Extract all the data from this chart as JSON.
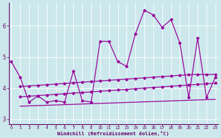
{
  "x": [
    0,
    1,
    2,
    3,
    4,
    5,
    6,
    7,
    8,
    9,
    10,
    11,
    12,
    13,
    14,
    15,
    16,
    17,
    18,
    19,
    20,
    21,
    22,
    23
  ],
  "line_main": [
    4.85,
    4.35,
    3.55,
    3.75,
    3.55,
    3.6,
    3.55,
    4.55,
    3.6,
    3.55,
    5.5,
    5.5,
    4.85,
    4.7,
    5.75,
    6.5,
    6.35,
    5.95,
    6.2,
    5.45,
    3.7,
    5.6,
    3.7,
    4.35
  ],
  "x_band": [
    1,
    2,
    3,
    4,
    5,
    6,
    7,
    8,
    9,
    10,
    11,
    12,
    13,
    14,
    15,
    16,
    17,
    18,
    19,
    20,
    21,
    22,
    23
  ],
  "line_upper": [
    4.05,
    4.07,
    4.09,
    4.11,
    4.13,
    4.15,
    4.17,
    4.19,
    4.21,
    4.23,
    4.25,
    4.27,
    4.29,
    4.31,
    4.33,
    4.35,
    4.37,
    4.39,
    4.41,
    4.43,
    4.44,
    4.44,
    4.44
  ],
  "line_mid": [
    3.72,
    3.74,
    3.76,
    3.78,
    3.8,
    3.82,
    3.84,
    3.86,
    3.88,
    3.9,
    3.92,
    3.94,
    3.96,
    3.98,
    4.0,
    4.02,
    4.04,
    4.06,
    4.08,
    4.1,
    4.12,
    4.14,
    4.16
  ],
  "line_lower": [
    3.42,
    3.43,
    3.44,
    3.45,
    3.46,
    3.47,
    3.48,
    3.49,
    3.5,
    3.51,
    3.52,
    3.53,
    3.54,
    3.55,
    3.56,
    3.57,
    3.58,
    3.59,
    3.6,
    3.61,
    3.62,
    3.63,
    3.64
  ],
  "ylim": [
    2.85,
    6.75
  ],
  "yticks": [
    3,
    4,
    5,
    6
  ],
  "xlim": [
    -0.3,
    23.3
  ],
  "xticks": [
    0,
    1,
    2,
    3,
    4,
    5,
    6,
    7,
    8,
    9,
    10,
    11,
    12,
    13,
    14,
    15,
    16,
    17,
    18,
    19,
    20,
    21,
    22,
    23
  ],
  "bg_color": "#cce8ec",
  "line_color": "#990099",
  "grid_color": "#ffffff",
  "xlabel": "Windchill (Refroidissement éolien,°C)",
  "xlabel_color": "#660066"
}
